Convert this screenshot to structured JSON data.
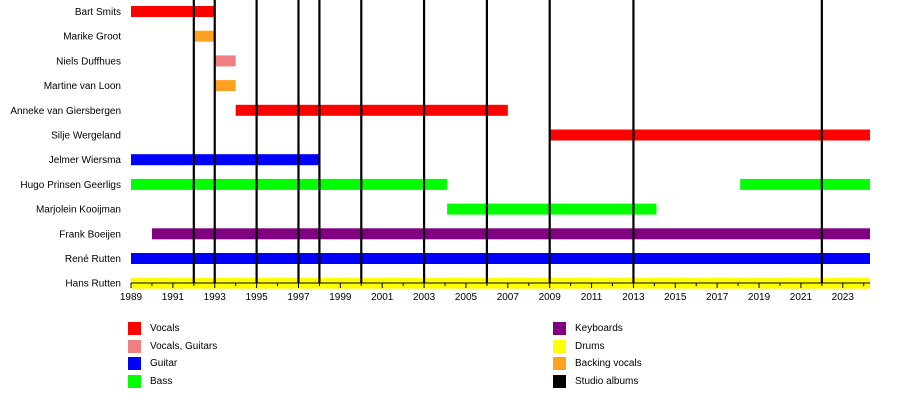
{
  "chart_data": {
    "type": "timeline",
    "title": "",
    "xlabel": "",
    "ylabel": "",
    "xlim": [
      1989,
      2024.3
    ],
    "tick_labels": [
      "1989",
      "1991",
      "1993",
      "1995",
      "1997",
      "1999",
      "2001",
      "2003",
      "2005",
      "2007",
      "2009",
      "2011",
      "2013",
      "2015",
      "2017",
      "2019",
      "2021",
      "2023"
    ],
    "members": [
      {
        "name": "Bart Smits",
        "spans": [
          {
            "start": 1989,
            "end": 1993,
            "role": "vocals"
          }
        ]
      },
      {
        "name": "Marike Groot",
        "spans": [
          {
            "start": 1992,
            "end": 1993,
            "role": "backing_vocals"
          }
        ]
      },
      {
        "name": "Niels Duffhues",
        "spans": [
          {
            "start": 1993,
            "end": 1994,
            "role": "vocals_guitars"
          }
        ]
      },
      {
        "name": "Martine van Loon",
        "spans": [
          {
            "start": 1993,
            "end": 1994,
            "role": "backing_vocals"
          }
        ]
      },
      {
        "name": "Anneke van Giersbergen",
        "spans": [
          {
            "start": 1994,
            "end": 2007,
            "role": "vocals"
          }
        ]
      },
      {
        "name": "Silje Wergeland",
        "spans": [
          {
            "start": 2009,
            "end": 2024.3,
            "role": "vocals"
          }
        ]
      },
      {
        "name": "Jelmer Wiersma",
        "spans": [
          {
            "start": 1989,
            "end": 1998,
            "role": "guitar"
          }
        ]
      },
      {
        "name": "Hugo Prinsen Geerligs",
        "spans": [
          {
            "start": 1989,
            "end": 2004.1,
            "role": "bass"
          },
          {
            "start": 2018.1,
            "end": 2024.3,
            "role": "bass"
          }
        ]
      },
      {
        "name": "Marjolein Kooijman",
        "spans": [
          {
            "start": 2004.1,
            "end": 2014.1,
            "role": "bass"
          }
        ]
      },
      {
        "name": "Frank Boeijen",
        "spans": [
          {
            "start": 1990,
            "end": 2024.3,
            "role": "keyboards"
          }
        ]
      },
      {
        "name": "René Rutten",
        "spans": [
          {
            "start": 1989,
            "end": 2024.3,
            "role": "guitar"
          }
        ]
      },
      {
        "name": "Hans Rutten",
        "spans": [
          {
            "start": 1989,
            "end": 2024.3,
            "role": "drums"
          }
        ]
      }
    ],
    "studio_albums": [
      1992,
      1993,
      1995,
      1997,
      1998,
      2000,
      2003,
      2006,
      2009,
      2013,
      2022
    ],
    "roles": {
      "vocals": {
        "label": "Vocals",
        "color": "#ff0000"
      },
      "vocals_guitars": {
        "label": "Vocals, Guitars",
        "color": "#f08080"
      },
      "guitar": {
        "label": "Guitar",
        "color": "#0000ff"
      },
      "bass": {
        "label": "Bass",
        "color": "#00ff00"
      },
      "keyboards": {
        "label": "Keyboards",
        "color": "#800080"
      },
      "drums": {
        "label": "Drums",
        "color": "#ffff00"
      },
      "backing_vocals": {
        "label": "Backing vocals",
        "color": "#ffa020"
      },
      "studio_albums": {
        "label": "Studio albums",
        "color": "#000000"
      }
    },
    "legend": [
      [
        "vocals",
        "vocals_guitars",
        "guitar",
        "bass"
      ],
      [
        "keyboards",
        "drums",
        "backing_vocals",
        "studio_albums"
      ]
    ]
  }
}
